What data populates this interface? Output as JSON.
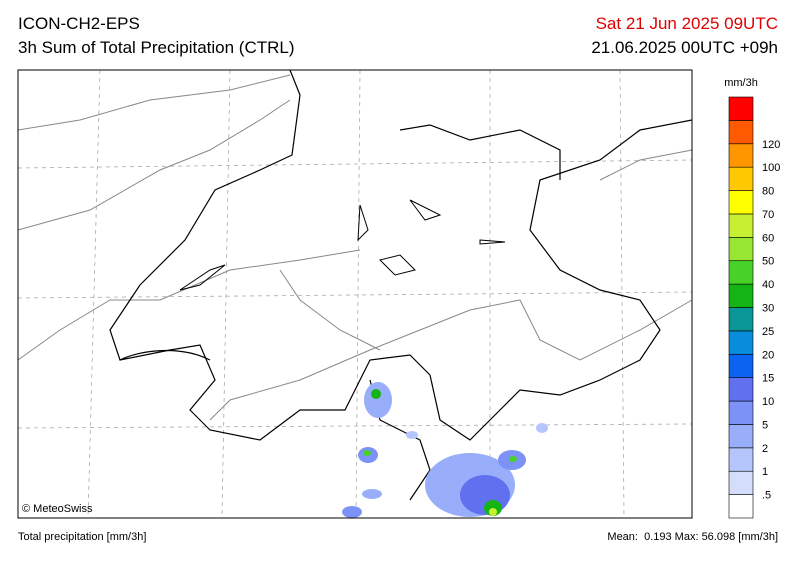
{
  "header": {
    "model": "ICON-CH2-EPS",
    "product": "3h Sum of Total Precipitation (CTRL)",
    "valid_time": "Sat 21 Jun 2025 09UTC",
    "run_time": "21.06.2025 00UTC +09h"
  },
  "colorbar": {
    "unit": "mm/3h",
    "labels": [
      ".5",
      "1",
      "2",
      "5",
      "10",
      "15",
      "20",
      "25",
      "30",
      "40",
      "50",
      "60",
      "70",
      "80",
      "100",
      "120"
    ],
    "colors": [
      "#ffffff",
      "#d4defc",
      "#b4c6fc",
      "#98aefa",
      "#7c92f6",
      "#6070ee",
      "#0a64f0",
      "#0a8cdc",
      "#0a9696",
      "#14b414",
      "#46d228",
      "#96e632",
      "#c8f032",
      "#ffff00",
      "#ffc800",
      "#ff9600",
      "#ff5a00",
      "#ff0000"
    ]
  },
  "credit": "© MeteoSwiss",
  "footer": {
    "left": "Total precipitation [mm/3h]",
    "right": "Mean:  0.193 Max: 56.098 [mm/3h]"
  }
}
